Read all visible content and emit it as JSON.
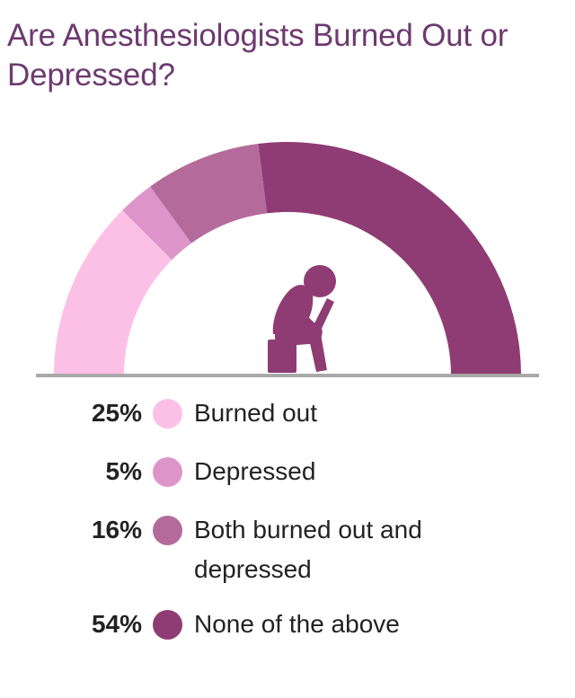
{
  "title": "Are Anesthesiologists Burned Out or Depressed?",
  "chart_data": {
    "type": "pie",
    "style": "semicircle donut",
    "slices": [
      {
        "label": "Burned out",
        "value": 25,
        "display": "25%",
        "color": "#fcc0e6"
      },
      {
        "label": "Depressed",
        "value": 5,
        "display": "5%",
        "color": "#dd95c9"
      },
      {
        "label": "Both burned out and depressed",
        "value": 16,
        "display": "16%",
        "color": "#b46b9c"
      },
      {
        "label": "None of the above",
        "value": 54,
        "display": "54%",
        "color": "#8f3c74"
      }
    ]
  },
  "icon": {
    "name": "depressed-person-icon",
    "color": "#8f3c74"
  },
  "baseline_color": "#a9a9a9"
}
